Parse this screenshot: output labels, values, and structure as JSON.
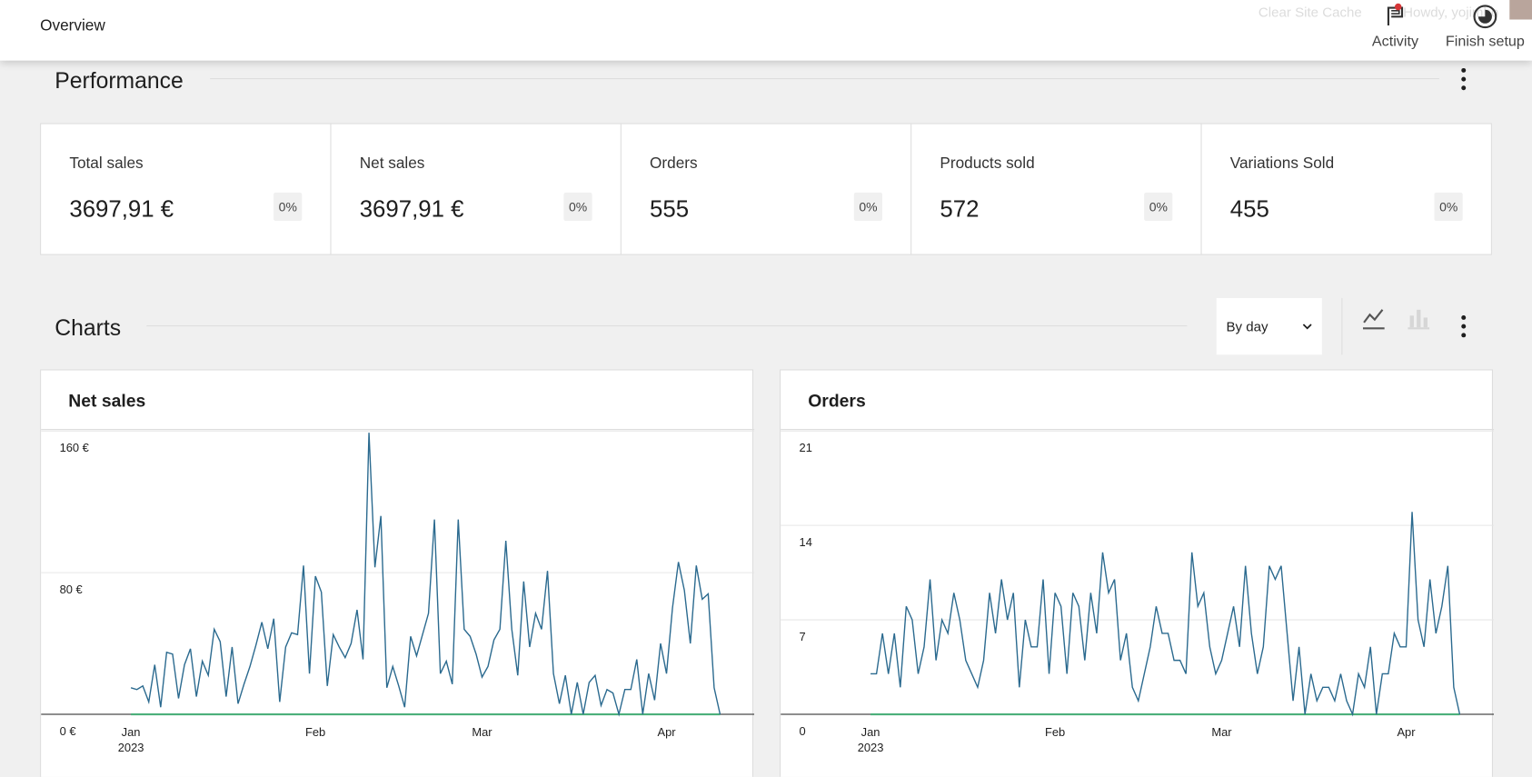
{
  "header": {
    "title": "Overview",
    "links": [
      "Clear Site Cache",
      "Howdy, yojimbo"
    ],
    "activity": "Activity",
    "finish_setup": "Finish setup"
  },
  "performance": {
    "title": "Performance",
    "cards": [
      {
        "label": "Total sales",
        "value": "3697,91 €",
        "change": "0%"
      },
      {
        "label": "Net sales",
        "value": "3697,91 €",
        "change": "0%"
      },
      {
        "label": "Orders",
        "value": "555",
        "change": "0%"
      },
      {
        "label": "Products sold",
        "value": "572",
        "change": "0%"
      },
      {
        "label": "Variations Sold",
        "value": "455",
        "change": "0%"
      }
    ]
  },
  "charts_section": {
    "title": "Charts",
    "interval": "By day"
  },
  "chart_data": [
    {
      "type": "line",
      "title": "Net sales",
      "categories": [
        "Jan",
        null,
        null,
        null,
        null,
        null,
        null,
        null,
        null,
        null,
        null,
        null,
        null,
        null,
        null,
        null,
        null,
        null,
        null,
        null,
        null,
        null,
        null,
        null,
        null,
        null,
        null,
        null,
        null,
        null,
        null,
        "Feb",
        null,
        null,
        null,
        null,
        null,
        null,
        null,
        null,
        null,
        null,
        null,
        null,
        null,
        null,
        null,
        null,
        null,
        null,
        null,
        null,
        null,
        null,
        null,
        null,
        null,
        null,
        null,
        "Mar",
        null,
        null,
        null,
        null,
        null,
        null,
        null,
        null,
        null,
        null,
        null,
        null,
        null,
        null,
        null,
        null,
        null,
        null,
        null,
        null,
        null,
        null,
        null,
        null,
        null,
        null,
        null,
        null,
        null,
        null,
        "Apr",
        null,
        null,
        null,
        null,
        null,
        null,
        null,
        null,
        null
      ],
      "x_sublabel": "2023",
      "series": [
        {
          "color": "#2b6a8f",
          "values": [
            15,
            14,
            16,
            7,
            28,
            4,
            35,
            34,
            9,
            28,
            37,
            10,
            30,
            22,
            48,
            41,
            10,
            38,
            6,
            17,
            27,
            39,
            52,
            37,
            54,
            7,
            38,
            46,
            45,
            84,
            23,
            78,
            69,
            16,
            45,
            38,
            32,
            40,
            59,
            31,
            159,
            83,
            112,
            15,
            27,
            16,
            4,
            44,
            33,
            45,
            57,
            110,
            23,
            30,
            17,
            110,
            48,
            44,
            34,
            21,
            27,
            42,
            48,
            98,
            48,
            22,
            75,
            38,
            57,
            48,
            81,
            23,
            6,
            22,
            0,
            18,
            0,
            18,
            22,
            5,
            14,
            12,
            0,
            14,
            14,
            31,
            0,
            23,
            8,
            40,
            23,
            60,
            86,
            70,
            40,
            84,
            65,
            68,
            15,
            0
          ]
        },
        {
          "color": "#4caf7a",
          "values": [
            0,
            0,
            0,
            0,
            0,
            0,
            0,
            0,
            0,
            0,
            0,
            0,
            0,
            0,
            0,
            0,
            0,
            0,
            0,
            0,
            0,
            0,
            0,
            0,
            0,
            0,
            0,
            0,
            0,
            0,
            0,
            0,
            0,
            0,
            0,
            0,
            0,
            0,
            0,
            0,
            0,
            0,
            0,
            0,
            0,
            0,
            0,
            0,
            0,
            0,
            0,
            0,
            0,
            0,
            0,
            0,
            0,
            0,
            0,
            0,
            0,
            0,
            0,
            0,
            0,
            0,
            0,
            0,
            0,
            0,
            0,
            0,
            0,
            0,
            0,
            0,
            0,
            0,
            0,
            0,
            0,
            0,
            0,
            0,
            0,
            0,
            0,
            0,
            0,
            0,
            0,
            0,
            0,
            0,
            0,
            0,
            0,
            0,
            0,
            0
          ]
        }
      ],
      "ylim": [
        0,
        160
      ],
      "yticks": [
        {
          "value": 0,
          "label": "0 €"
        },
        {
          "value": 80,
          "label": "80 €"
        },
        {
          "value": 160,
          "label": "160 €"
        }
      ],
      "grid": true
    },
    {
      "type": "line",
      "title": "Orders",
      "categories": [
        "Jan",
        null,
        null,
        null,
        null,
        null,
        null,
        null,
        null,
        null,
        null,
        null,
        null,
        null,
        null,
        null,
        null,
        null,
        null,
        null,
        null,
        null,
        null,
        null,
        null,
        null,
        null,
        null,
        null,
        null,
        null,
        "Feb",
        null,
        null,
        null,
        null,
        null,
        null,
        null,
        null,
        null,
        null,
        null,
        null,
        null,
        null,
        null,
        null,
        null,
        null,
        null,
        null,
        null,
        null,
        null,
        null,
        null,
        null,
        null,
        "Mar",
        null,
        null,
        null,
        null,
        null,
        null,
        null,
        null,
        null,
        null,
        null,
        null,
        null,
        null,
        null,
        null,
        null,
        null,
        null,
        null,
        null,
        null,
        null,
        null,
        null,
        null,
        null,
        null,
        null,
        null,
        "Apr",
        null,
        null,
        null,
        null,
        null,
        null,
        null,
        null,
        null
      ],
      "x_sublabel": "2023",
      "series": [
        {
          "color": "#2b6a8f",
          "values": [
            3,
            3,
            6,
            3,
            6,
            2,
            8,
            7,
            3,
            5,
            10,
            4,
            7,
            6,
            9,
            7,
            4,
            3,
            2,
            4,
            9,
            6,
            10,
            7,
            9,
            2,
            7,
            5,
            5,
            10,
            3,
            9,
            8,
            3,
            9,
            8,
            4,
            9,
            6,
            12,
            9,
            10,
            4,
            6,
            2,
            1,
            3,
            5,
            8,
            6,
            6,
            4,
            4,
            3,
            12,
            8,
            9,
            5,
            3,
            4,
            6,
            8,
            5,
            11,
            6,
            3,
            5,
            11,
            10,
            11,
            6,
            1,
            5,
            0,
            3,
            1,
            2,
            2,
            1,
            3,
            1,
            0,
            3,
            2,
            5,
            0,
            3,
            3,
            6,
            5,
            5,
            15,
            7,
            5,
            10,
            6,
            8,
            11,
            2,
            0
          ]
        },
        {
          "color": "#4caf7a",
          "values": [
            0,
            0,
            0,
            0,
            0,
            0,
            0,
            0,
            0,
            0,
            0,
            0,
            0,
            0,
            0,
            0,
            0,
            0,
            0,
            0,
            0,
            0,
            0,
            0,
            0,
            0,
            0,
            0,
            0,
            0,
            0,
            0,
            0,
            0,
            0,
            0,
            0,
            0,
            0,
            0,
            0,
            0,
            0,
            0,
            0,
            0,
            0,
            0,
            0,
            0,
            0,
            0,
            0,
            0,
            0,
            0,
            0,
            0,
            0,
            0,
            0,
            0,
            0,
            0,
            0,
            0,
            0,
            0,
            0,
            0,
            0,
            0,
            0,
            0,
            0,
            0,
            0,
            0,
            0,
            0,
            0,
            0,
            0,
            0,
            0,
            0,
            0,
            0,
            0,
            0,
            0,
            0,
            0,
            0,
            0,
            0,
            0,
            0,
            0,
            0
          ]
        }
      ],
      "ylim": [
        0,
        21
      ],
      "yticks": [
        0,
        7,
        14,
        21
      ],
      "grid": true
    }
  ]
}
